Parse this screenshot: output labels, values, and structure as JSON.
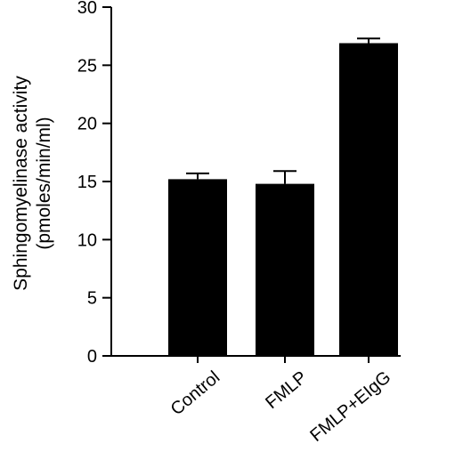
{
  "chart_data": {
    "type": "bar",
    "categories": [
      "Control",
      "FMLP",
      "FMLP+EIgG"
    ],
    "values": [
      15.2,
      14.8,
      26.9
    ],
    "errors": [
      0.5,
      1.1,
      0.4
    ],
    "ylabel_line1": "Sphingomyelinase activity",
    "ylabel_line2": "(pmoles/min/ml)",
    "ylim": [
      0,
      30
    ],
    "yticks": [
      0,
      5,
      10,
      15,
      20,
      25,
      30
    ],
    "bar_color": "#000000",
    "grid": false,
    "legend": "none"
  }
}
